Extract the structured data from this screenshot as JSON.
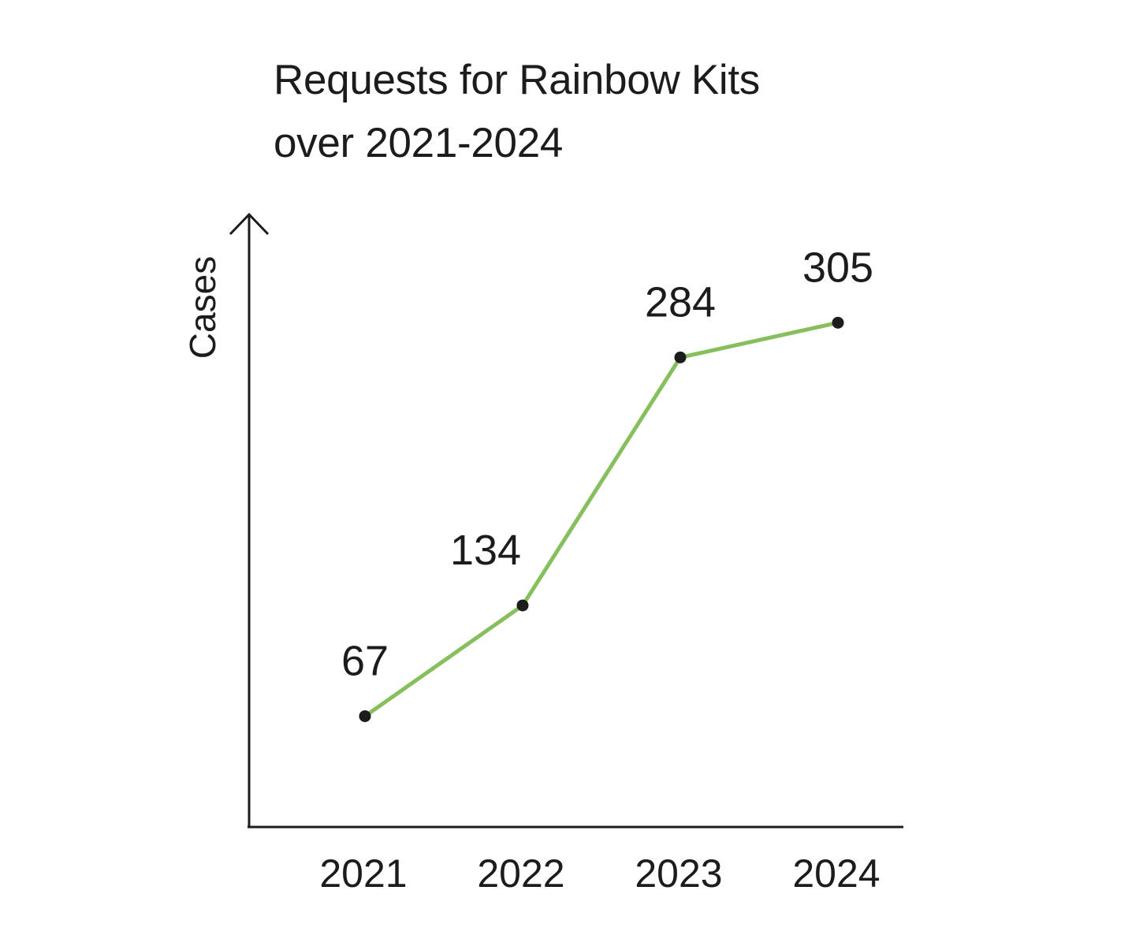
{
  "chart_data": {
    "type": "line",
    "title_lines": [
      "Requests for Rainbow Kits",
      "over 2021-2024"
    ],
    "xlabel": "",
    "ylabel": "Cases",
    "categories": [
      "2021",
      "2022",
      "2023",
      "2024"
    ],
    "series": [
      {
        "values": [
          67,
          134,
          284,
          305
        ]
      }
    ],
    "data_labels": [
      "67",
      "134",
      "284",
      "305"
    ],
    "ylim": [
      0,
      370
    ],
    "grid": false,
    "legend": "none",
    "colors": {
      "line": "#86bf5c",
      "marker": "#1c1c1c",
      "axis": "#1c1c1c",
      "text": "#1c1c1c"
    }
  }
}
